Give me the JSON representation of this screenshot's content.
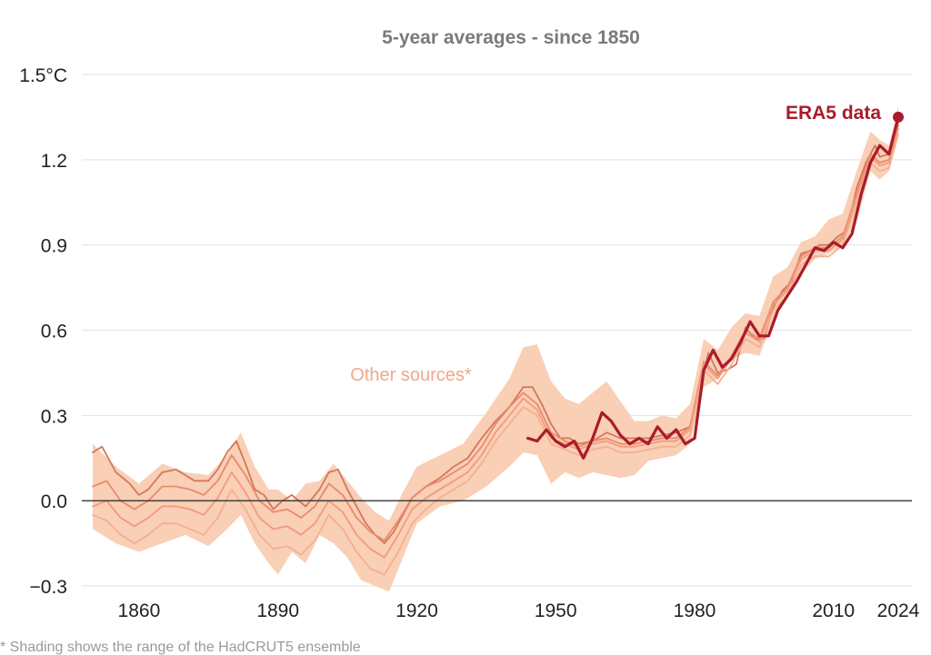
{
  "chart_data": {
    "type": "line",
    "title": "5-year averages - since 1850",
    "unit": "°C",
    "xlabel": "",
    "ylabel": "",
    "xlim": [
      1850,
      2024
    ],
    "ylim": [
      -0.3,
      1.5
    ],
    "grid": true,
    "x_ticks": [
      {
        "value": 1860,
        "label": "1860"
      },
      {
        "value": 1890,
        "label": "1890"
      },
      {
        "value": 1920,
        "label": "1920"
      },
      {
        "value": 1950,
        "label": "1950"
      },
      {
        "value": 1980,
        "label": "1980"
      },
      {
        "value": 2010,
        "label": "2010"
      },
      {
        "value": 2024,
        "label": "2024"
      }
    ],
    "y_ticks": [
      {
        "value": 1.5,
        "label": "1.5°C"
      },
      {
        "value": 1.2,
        "label": "1.2"
      },
      {
        "value": 0.9,
        "label": "0.9"
      },
      {
        "value": 0.6,
        "label": "0.6"
      },
      {
        "value": 0.3,
        "label": "0.3"
      },
      {
        "value": 0.0,
        "label": "0.0"
      },
      {
        "value": -0.3,
        "label": "−0.3"
      }
    ],
    "annotations": [
      {
        "text": "ERA5 data",
        "series": "era5",
        "color": "#a91c2b"
      },
      {
        "text": "Other sources*",
        "series": "others",
        "color": "#f0a888"
      }
    ],
    "colors": {
      "era5": "#a91c2b",
      "band": "#f9cfb6",
      "other_lines": [
        "#d3785a",
        "#e98a6c",
        "#f29a7e",
        "#f4b090"
      ],
      "zero_line": "#333333",
      "grid": "#e3e3e3"
    },
    "band": {
      "name": "Other sources*",
      "x": [
        1850,
        1855,
        1860,
        1865,
        1870,
        1875,
        1879,
        1882,
        1885,
        1888,
        1890,
        1893,
        1896,
        1899,
        1902,
        1905,
        1908,
        1911,
        1914,
        1917,
        1920,
        1925,
        1930,
        1935,
        1940,
        1943,
        1946,
        1949,
        1952,
        1955,
        1958,
        1961,
        1964,
        1967,
        1970,
        1973,
        1976,
        1979,
        1982,
        1985,
        1988,
        1991,
        1994,
        1997,
        2000,
        2003,
        2006,
        2009,
        2012,
        2015,
        2018,
        2020,
        2022,
        2024
      ],
      "lower": [
        -0.1,
        -0.15,
        -0.18,
        -0.15,
        -0.12,
        -0.16,
        -0.1,
        -0.05,
        -0.15,
        -0.22,
        -0.26,
        -0.18,
        -0.22,
        -0.12,
        -0.15,
        -0.2,
        -0.28,
        -0.3,
        -0.32,
        -0.2,
        -0.08,
        -0.02,
        0.0,
        0.05,
        0.12,
        0.17,
        0.16,
        0.06,
        0.1,
        0.08,
        0.1,
        0.09,
        0.08,
        0.09,
        0.14,
        0.15,
        0.16,
        0.2,
        0.4,
        0.43,
        0.5,
        0.52,
        0.51,
        0.63,
        0.72,
        0.8,
        0.85,
        0.87,
        0.9,
        0.98,
        1.16,
        1.13,
        1.16,
        1.29
      ],
      "upper": [
        0.2,
        0.12,
        0.06,
        0.13,
        0.1,
        0.09,
        0.16,
        0.24,
        0.12,
        0.04,
        0.04,
        0.0,
        0.06,
        0.07,
        0.13,
        0.07,
        0.01,
        -0.04,
        -0.07,
        0.03,
        0.12,
        0.16,
        0.2,
        0.31,
        0.43,
        0.54,
        0.55,
        0.42,
        0.36,
        0.34,
        0.38,
        0.42,
        0.35,
        0.28,
        0.28,
        0.3,
        0.29,
        0.34,
        0.57,
        0.53,
        0.61,
        0.66,
        0.65,
        0.79,
        0.82,
        0.91,
        0.93,
        0.99,
        1.01,
        1.16,
        1.3,
        1.27,
        1.25,
        1.39
      ]
    },
    "series": [
      {
        "id": "src1",
        "x": [
          1850,
          1852,
          1855,
          1858,
          1860,
          1862,
          1865,
          1868,
          1870,
          1872,
          1875,
          1877,
          1879,
          1881,
          1883,
          1885,
          1887,
          1889,
          1891,
          1893,
          1896,
          1899,
          1901,
          1903,
          1905,
          1907,
          1909,
          1911,
          1913,
          1915,
          1917,
          1919,
          1922,
          1925,
          1928,
          1931,
          1934,
          1937,
          1940,
          1943,
          1945,
          1947,
          1949,
          1951,
          1953,
          1955,
          1958,
          1961,
          1964,
          1967,
          1970,
          1973,
          1976,
          1979,
          1981,
          1983,
          1985,
          1987,
          1989,
          1991,
          1993,
          1995,
          1997,
          1999,
          2001,
          2003,
          2005,
          2007,
          2009,
          2011,
          2013,
          2015,
          2017,
          2019,
          2020,
          2022,
          2024
        ],
        "values": [
          0.17,
          0.19,
          0.1,
          0.06,
          0.02,
          0.04,
          0.1,
          0.11,
          0.09,
          0.07,
          0.07,
          0.11,
          0.17,
          0.21,
          0.13,
          0.04,
          0.02,
          -0.03,
          0.0,
          0.02,
          -0.02,
          0.04,
          0.1,
          0.11,
          0.04,
          -0.02,
          -0.08,
          -0.12,
          -0.15,
          -0.11,
          -0.05,
          0.01,
          0.05,
          0.08,
          0.12,
          0.15,
          0.22,
          0.28,
          0.33,
          0.4,
          0.4,
          0.34,
          0.27,
          0.22,
          0.22,
          0.2,
          0.21,
          0.24,
          0.22,
          0.22,
          0.22,
          0.23,
          0.24,
          0.26,
          0.39,
          0.52,
          0.45,
          0.46,
          0.48,
          0.61,
          0.57,
          0.57,
          0.68,
          0.74,
          0.77,
          0.87,
          0.88,
          0.9,
          0.9,
          0.93,
          0.95,
          1.1,
          1.19,
          1.25,
          1.21,
          1.22,
          1.33
        ]
      },
      {
        "id": "src2",
        "x": [
          1850,
          1853,
          1856,
          1859,
          1862,
          1865,
          1868,
          1871,
          1874,
          1877,
          1880,
          1883,
          1886,
          1889,
          1892,
          1895,
          1898,
          1901,
          1904,
          1907,
          1910,
          1913,
          1916,
          1919,
          1922,
          1925,
          1928,
          1931,
          1934,
          1937,
          1940,
          1943,
          1946,
          1949,
          1952,
          1955,
          1958,
          1961,
          1964,
          1967,
          1970,
          1973,
          1976,
          1979,
          1982,
          1985,
          1988,
          1991,
          1994,
          1997,
          2000,
          2003,
          2006,
          2009,
          2012,
          2015,
          2018,
          2020,
          2022,
          2024
        ],
        "values": [
          0.05,
          0.07,
          0.0,
          -0.03,
          0.0,
          0.05,
          0.05,
          0.04,
          0.02,
          0.07,
          0.16,
          0.09,
          0.0,
          -0.04,
          -0.03,
          -0.06,
          -0.02,
          0.06,
          0.02,
          -0.06,
          -0.11,
          -0.14,
          -0.07,
          0.01,
          0.05,
          0.07,
          0.1,
          0.13,
          0.19,
          0.27,
          0.33,
          0.38,
          0.34,
          0.24,
          0.21,
          0.19,
          0.21,
          0.22,
          0.2,
          0.2,
          0.21,
          0.22,
          0.22,
          0.26,
          0.49,
          0.44,
          0.51,
          0.6,
          0.57,
          0.7,
          0.75,
          0.86,
          0.89,
          0.89,
          0.93,
          1.08,
          1.22,
          1.19,
          1.2,
          1.32
        ]
      },
      {
        "id": "src3",
        "x": [
          1850,
          1853,
          1856,
          1859,
          1862,
          1865,
          1868,
          1871,
          1874,
          1877,
          1880,
          1883,
          1886,
          1889,
          1892,
          1895,
          1898,
          1901,
          1904,
          1907,
          1910,
          1913,
          1916,
          1919,
          1922,
          1925,
          1928,
          1931,
          1934,
          1937,
          1940,
          1943,
          1946,
          1949,
          1952,
          1955,
          1958,
          1961,
          1964,
          1967,
          1970,
          1973,
          1976,
          1979,
          1982,
          1985,
          1988,
          1991,
          1994,
          1997,
          2000,
          2003,
          2006,
          2009,
          2012,
          2015,
          2018,
          2020,
          2022,
          2024
        ],
        "values": [
          -0.02,
          0.0,
          -0.06,
          -0.09,
          -0.06,
          -0.02,
          -0.02,
          -0.03,
          -0.05,
          0.01,
          0.1,
          0.03,
          -0.06,
          -0.1,
          -0.09,
          -0.12,
          -0.08,
          0.0,
          -0.04,
          -0.12,
          -0.17,
          -0.2,
          -0.12,
          -0.03,
          0.01,
          0.04,
          0.07,
          0.1,
          0.16,
          0.24,
          0.3,
          0.36,
          0.32,
          0.22,
          0.2,
          0.18,
          0.2,
          0.21,
          0.19,
          0.19,
          0.2,
          0.21,
          0.21,
          0.25,
          0.48,
          0.43,
          0.5,
          0.59,
          0.56,
          0.69,
          0.74,
          0.85,
          0.88,
          0.88,
          0.92,
          1.07,
          1.21,
          1.18,
          1.19,
          1.31
        ]
      },
      {
        "id": "src4",
        "x": [
          1850,
          1853,
          1856,
          1859,
          1862,
          1865,
          1868,
          1871,
          1874,
          1877,
          1880,
          1883,
          1886,
          1889,
          1892,
          1895,
          1898,
          1901,
          1904,
          1907,
          1910,
          1913,
          1916,
          1919,
          1922,
          1925,
          1928,
          1931,
          1934,
          1937,
          1940,
          1943,
          1946,
          1949,
          1952,
          1955,
          1958,
          1961,
          1964,
          1967,
          1970,
          1973,
          1976,
          1979,
          1982,
          1985,
          1988,
          1991,
          1994,
          1997,
          2000,
          2003,
          2006,
          2009,
          2012,
          2015,
          2018,
          2020,
          2022,
          2024
        ],
        "values": [
          -0.05,
          -0.07,
          -0.12,
          -0.15,
          -0.12,
          -0.08,
          -0.08,
          -0.1,
          -0.12,
          -0.06,
          0.04,
          -0.03,
          -0.12,
          -0.17,
          -0.16,
          -0.19,
          -0.14,
          -0.05,
          -0.1,
          -0.18,
          -0.24,
          -0.26,
          -0.18,
          -0.08,
          -0.03,
          0.01,
          0.04,
          0.07,
          0.13,
          0.21,
          0.27,
          0.33,
          0.3,
          0.2,
          0.18,
          0.16,
          0.18,
          0.19,
          0.17,
          0.17,
          0.18,
          0.19,
          0.19,
          0.23,
          0.46,
          0.41,
          0.48,
          0.57,
          0.54,
          0.67,
          0.72,
          0.83,
          0.86,
          0.86,
          0.9,
          1.05,
          1.19,
          1.16,
          1.17,
          1.29
        ]
      },
      {
        "id": "era5",
        "name": "ERA5 data",
        "x": [
          1944,
          1946,
          1948,
          1950,
          1952,
          1954,
          1956,
          1958,
          1960,
          1962,
          1964,
          1966,
          1968,
          1970,
          1972,
          1974,
          1976,
          1978,
          1980,
          1982,
          1984,
          1986,
          1988,
          1990,
          1992,
          1994,
          1996,
          1998,
          2000,
          2002,
          2004,
          2006,
          2008,
          2010,
          2012,
          2014,
          2016,
          2018,
          2020,
          2022,
          2024
        ],
        "values": [
          0.22,
          0.21,
          0.25,
          0.21,
          0.19,
          0.21,
          0.15,
          0.22,
          0.31,
          0.28,
          0.23,
          0.2,
          0.22,
          0.2,
          0.26,
          0.22,
          0.25,
          0.2,
          0.22,
          0.46,
          0.53,
          0.47,
          0.5,
          0.56,
          0.63,
          0.58,
          0.58,
          0.67,
          0.72,
          0.77,
          0.83,
          0.89,
          0.88,
          0.91,
          0.89,
          0.94,
          1.08,
          1.19,
          1.25,
          1.22,
          1.35
        ]
      }
    ]
  },
  "footnote": "* Shading shows the range of the HadCRUT5 ensemble"
}
